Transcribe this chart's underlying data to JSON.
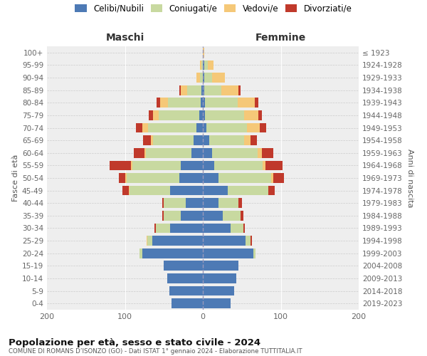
{
  "age_groups": [
    "0-4",
    "5-9",
    "10-14",
    "15-19",
    "20-24",
    "25-29",
    "30-34",
    "35-39",
    "40-44",
    "45-49",
    "50-54",
    "55-59",
    "60-64",
    "65-69",
    "70-74",
    "75-79",
    "80-84",
    "85-89",
    "90-94",
    "95-99",
    "100+"
  ],
  "birth_years": [
    "2019-2023",
    "2014-2018",
    "2009-2013",
    "2004-2008",
    "1999-2003",
    "1994-1998",
    "1989-1993",
    "1984-1988",
    "1979-1983",
    "1974-1978",
    "1969-1973",
    "1964-1968",
    "1959-1963",
    "1954-1958",
    "1949-1953",
    "1944-1948",
    "1939-1943",
    "1934-1938",
    "1929-1933",
    "1924-1928",
    "≤ 1923"
  ],
  "m_cel": [
    40,
    43,
    46,
    50,
    78,
    65,
    42,
    28,
    22,
    42,
    30,
    28,
    15,
    12,
    8,
    5,
    3,
    2,
    0,
    0,
    0
  ],
  "m_con": [
    0,
    0,
    0,
    0,
    3,
    6,
    18,
    22,
    28,
    52,
    68,
    62,
    58,
    52,
    62,
    52,
    42,
    18,
    4,
    2,
    0
  ],
  "m_ved": [
    0,
    0,
    0,
    0,
    0,
    1,
    0,
    0,
    0,
    1,
    2,
    2,
    2,
    3,
    8,
    7,
    10,
    8,
    4,
    2,
    0
  ],
  "m_div": [
    0,
    0,
    0,
    0,
    0,
    0,
    2,
    2,
    2,
    8,
    8,
    28,
    14,
    10,
    8,
    5,
    4,
    2,
    0,
    0,
    0
  ],
  "f_nub": [
    36,
    40,
    43,
    46,
    65,
    55,
    36,
    26,
    20,
    32,
    20,
    15,
    12,
    8,
    5,
    3,
    3,
    2,
    2,
    2,
    0
  ],
  "f_con": [
    0,
    0,
    0,
    0,
    3,
    6,
    16,
    22,
    26,
    52,
    68,
    62,
    58,
    45,
    52,
    50,
    42,
    22,
    10,
    4,
    0
  ],
  "f_ved": [
    0,
    0,
    0,
    0,
    0,
    0,
    0,
    0,
    0,
    0,
    2,
    3,
    6,
    8,
    16,
    18,
    22,
    22,
    16,
    8,
    2
  ],
  "f_div": [
    0,
    0,
    0,
    0,
    0,
    2,
    2,
    4,
    4,
    8,
    14,
    22,
    14,
    8,
    8,
    5,
    4,
    2,
    0,
    0,
    0
  ],
  "color_celibi": "#4d7ab5",
  "color_coniugati": "#c8d9a0",
  "color_vedovi": "#f5c878",
  "color_divorziati": "#c0392b",
  "xlim": 200,
  "title_main": "Popolazione per età, sesso e stato civile - 2024",
  "title_sub": "COMUNE DI ROMANS D’ISONZO (GO) - Dati ISTAT 1° gennaio 2024 - Elaborazione TUTTITALIA.IT",
  "label_maschi": "Maschi",
  "label_femmine": "Femmine",
  "label_fasce": "Fasce di età",
  "label_anni": "Anni di nascita",
  "legend_celibi": "Celibi/Nubili",
  "legend_coniugati": "Coniugati/e",
  "legend_vedovi": "Vedovi/e",
  "legend_divorziati": "Divorziati/e",
  "bg_color": "#eeeeee"
}
